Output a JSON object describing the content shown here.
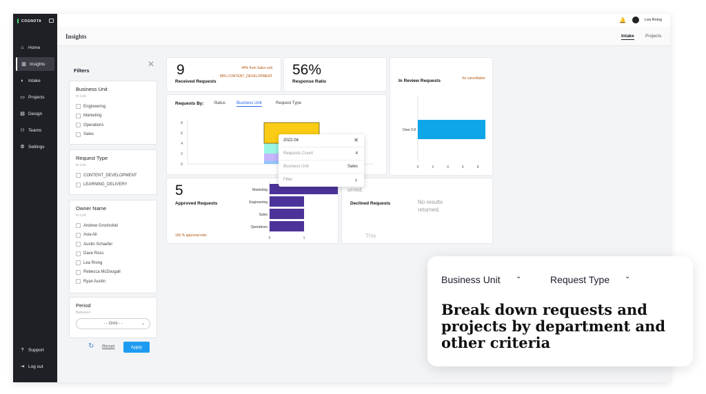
{
  "app": {
    "logo": "COGNOTA"
  },
  "sidebar": {
    "items": [
      {
        "label": "Home",
        "icon": "home-icon",
        "glyph": "⌂"
      },
      {
        "label": "Insights",
        "icon": "chart-icon",
        "glyph": "▥"
      },
      {
        "label": "Intake",
        "icon": "intake-icon",
        "glyph": "◐"
      },
      {
        "label": "Projects",
        "icon": "projects-icon",
        "glyph": "▭"
      },
      {
        "label": "Design",
        "icon": "design-icon",
        "glyph": "▤"
      },
      {
        "label": "Teams",
        "icon": "teams-icon",
        "glyph": "⚇"
      },
      {
        "label": "Settings",
        "icon": "gear-icon",
        "glyph": "⚙"
      }
    ],
    "bottom": [
      {
        "label": "Support",
        "icon": "support-icon",
        "glyph": "?"
      },
      {
        "label": "Log out",
        "icon": "logout-icon",
        "glyph": "⇥"
      }
    ]
  },
  "topbar": {
    "user": "Lea Rning"
  },
  "header": {
    "title": "Insights",
    "tabs": [
      "Intake",
      "Projects"
    ]
  },
  "filters": {
    "title": "Filters",
    "business_unit": {
      "title": "Business Unit",
      "sub": "In List",
      "options": [
        "Engineering",
        "Marketing",
        "Operations",
        "Sales"
      ]
    },
    "request_type": {
      "title": "Request Type",
      "sub": "In List",
      "options": [
        "CONTENT_DEVELOPMENT",
        "LEARNING_DELIVERY"
      ]
    },
    "owner_name": {
      "title": "Owner Name",
      "sub": "In List",
      "options": [
        "Andrew Grocholski",
        "Asia Ali",
        "Austin Schaefer",
        "Dave Ross",
        "Lea Rning",
        "Rebecca McDougall",
        "Ryan Austin"
      ]
    },
    "period": {
      "title": "Period",
      "sub": "Between",
      "value": "- - Omit - -"
    },
    "reset": "Reset",
    "apply": "Apply"
  },
  "cards": {
    "received": {
      "value": "9",
      "label": "Received Requests",
      "note1": "44% from Sales unit",
      "note2": "89% CONTENT_DEVELOPMENT"
    },
    "response": {
      "value": "56%",
      "label": "Response Ratio"
    },
    "review": {
      "label": "In Review Requests",
      "note": "for cancellation"
    },
    "requests_by": {
      "label": "Requests By:",
      "tabs": [
        "Status",
        "Business Unit",
        "Request Type"
      ],
      "partial_tick": "202"
    },
    "approved": {
      "value": "5",
      "label": "Approved Requests",
      "note": "100 % approval ratio"
    },
    "declined": {
      "label": "Declined Requests",
      "empty1": "No results",
      "empty2": "returned.",
      "ghost1": "urned.",
      "ghost2": "This"
    }
  },
  "tooltip": {
    "title": "2022-04",
    "rows": [
      {
        "k": "Requests Count",
        "v": "4"
      },
      {
        "k": "Business Unit",
        "v": "Sales"
      }
    ],
    "filter": "Filter"
  },
  "chart_data": [
    {
      "type": "bar",
      "orientation": "horizontal",
      "categories": [
        "Over 0.8"
      ],
      "values": [
        9
      ],
      "xlim": [
        0,
        9
      ],
      "xticks": [
        "0",
        "2",
        "4",
        "6",
        "8"
      ],
      "color": "#0ea5e9"
    },
    {
      "type": "bar",
      "stacked": true,
      "categories": [
        "2022-04"
      ],
      "series": [
        {
          "values": [
            0.6
          ],
          "color": "#93c5fd"
        },
        {
          "values": [
            1.4
          ],
          "color": "#c4b5fd"
        },
        {
          "values": [
            2
          ],
          "color": "#99f6e4"
        },
        {
          "values": [
            4
          ],
          "color": "#facc15"
        }
      ],
      "ylim": [
        0,
        8
      ],
      "yticks": [
        "0",
        "2",
        "4",
        "6",
        "8"
      ]
    },
    {
      "type": "bar",
      "orientation": "horizontal",
      "categories": [
        "Marketing",
        "Engineering",
        "Sales",
        "Operations"
      ],
      "values": [
        2,
        1,
        1,
        1
      ],
      "xlim": [
        0,
        2
      ],
      "xticks": [
        "0",
        "1",
        "2"
      ],
      "color": "#4c3399"
    }
  ],
  "promo": {
    "filters": [
      "Business Unit",
      "Request Type"
    ],
    "headline": "Break down requests and projects by department and other criteria"
  }
}
